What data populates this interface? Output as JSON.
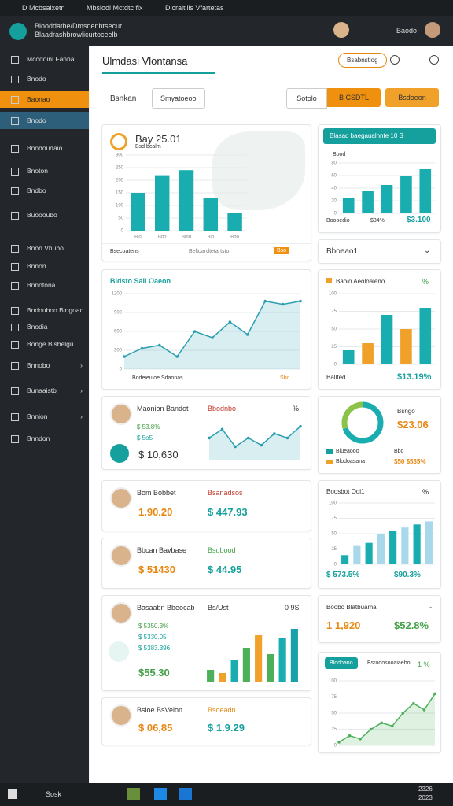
{
  "tabs": [
    "D Mcbsaixetn",
    "Mbsiodi Mctdtc fix",
    "Dlcraltiiis Vfartetas"
  ],
  "address": {
    "line1": "Blooddathe/Dmsdenbtsecur",
    "line2": "Blaadrashbrowlicurtoceelb"
  },
  "toolbar": {
    "button": "Baodo"
  },
  "sidebar": [
    "Mcodoinl Fanna",
    "Bnodo",
    "Baonao",
    "Bnodo",
    "Bnodoudaio",
    "Bnoton",
    "Bndbo",
    "Buoooubo",
    "Bnon Vhubo",
    "Bnnon",
    "Bnnotona",
    "Bndouboo Bingoao",
    "Bnodia",
    "Bonge Blsbelgu",
    "Bnnobo",
    "Bunaaistb",
    "Bnnion",
    "Bnndon"
  ],
  "header": {
    "title": "Ulmdasi Vlontansa",
    "button": "Bsabnstiog"
  },
  "filters": {
    "label": "Bsnkan",
    "select": "Smyatoeoo",
    "tab": "Sotolo",
    "active": "B CSDTL",
    "action": "Bsdoeon"
  },
  "left": [
    {
      "title": "Bay 25.01",
      "subtitle": "Bsd bcalm",
      "chart": {
        "type": "bar",
        "categories": [
          "Blo",
          "Bdo",
          "Blnd",
          "Blo",
          "Bdo"
        ],
        "values": [
          150,
          220,
          240,
          130,
          70
        ],
        "color": "#19adb0",
        "ylim": [
          0,
          300
        ],
        "yticks": [
          0,
          50,
          100,
          150,
          200,
          250,
          300
        ]
      },
      "footer": "Bsecoatens",
      "note": "Beltoardtetartsto",
      "badge": "Bso"
    },
    {
      "title": "Bldsto Sall Oaeon",
      "chart": {
        "type": "area",
        "values": [
          200,
          330,
          380,
          200,
          600,
          500,
          750,
          550,
          1080,
          1030,
          1080
        ],
        "color": "#2a9fb0",
        "ylim": [
          0,
          1200
        ],
        "yticks": [
          0,
          300,
          600,
          900,
          1200
        ]
      },
      "footer": "Bodeieuloe Sdaonas",
      "badge": "Sbo"
    },
    {
      "name": "Maonion Bandot",
      "tag": "Bbodnbo",
      "unit": "%",
      "stats": [
        "$ 53.8%",
        "$ 5o5"
      ],
      "value": "$ 10,630",
      "chart": {
        "type": "area",
        "values": [
          30,
          42,
          18,
          30,
          20,
          36,
          30,
          46
        ],
        "color": "#2a9fb0",
        "ylim": [
          0,
          50
        ]
      }
    },
    {
      "name": "Bom Bobbet",
      "tag": "Bsanadsos",
      "value": "1.90.20",
      "amount": "$ 447.93"
    },
    {
      "name": "Bbcan Bavbase",
      "tag": "Bsdbood",
      "value": "$ 51430",
      "amount": "$ 44.95"
    },
    {
      "name": "Basaabn Bbeocab",
      "tag": "Bs/Ust",
      "unit": "0 9S",
      "stats": [
        "$ 5350.3%",
        "$ 5330.05",
        "$ 5383.396"
      ],
      "value": "$55.30",
      "chart": {
        "type": "bar",
        "values": [
          20,
          15,
          35,
          55,
          75,
          45,
          70,
          85
        ],
        "colors": [
          "#4cb05a",
          "#f0a12a",
          "#19adb0",
          "#4cb05a",
          "#f0a12a",
          "#4cb05a",
          "#19adb0",
          "#19a0a8"
        ],
        "ylim": [
          0,
          100
        ]
      }
    },
    {
      "name": "Bsloe BsVeion",
      "tag": "Bsoeadn",
      "value": "$ 06,85",
      "amount": "$ 1.9.29"
    }
  ],
  "right": [
    {
      "title": "Blasad baegaualnnte 10 S",
      "legend": "Bood",
      "chart": {
        "type": "bar",
        "values": [
          25,
          35,
          45,
          60,
          70
        ],
        "color": "#19adb0",
        "ylim": [
          0,
          80
        ],
        "yticks": [
          0,
          20,
          40,
          60,
          80
        ]
      },
      "footer": "Boooedio",
      "stat": "$34%",
      "value": "$3.100"
    },
    {
      "title": "Bboeao1"
    },
    {
      "title": "Baoio Aeoloaleno",
      "unit": "%",
      "chart": {
        "type": "bar",
        "values": [
          20,
          30,
          70,
          50,
          80
        ],
        "colors": [
          "#19adb0",
          "#f0a12a",
          "#19adb0",
          "#f0a12a",
          "#19adb0"
        ],
        "ylim": [
          0,
          100
        ],
        "yticks": [
          0,
          25,
          50,
          75,
          100
        ]
      },
      "footer": "Ballted",
      "value": "$13.19%"
    },
    {
      "label": "Bsngo",
      "value": "$23.06",
      "legend": [
        "Blueaooo",
        "Blodoasana"
      ],
      "tag": "Bbo",
      "stat": "$50 $535%",
      "chart": {
        "type": "donut",
        "values": [
          70,
          30
        ],
        "colors": [
          "#19adb0",
          "#8bc34a"
        ]
      }
    },
    {
      "title": "Boosbot Ooi1",
      "unit": "%",
      "chart": {
        "type": "bar",
        "values": [
          15,
          30,
          35,
          50,
          55,
          60,
          65,
          70
        ],
        "colors": [
          "#19adb0",
          "#a8d8ea",
          "#19adb0",
          "#a8d8ea",
          "#19adb0",
          "#a8d8ea",
          "#19adb0",
          "#a8d8ea"
        ],
        "ylim": [
          0,
          100
        ],
        "yticks": [
          0,
          25,
          50,
          75,
          100
        ]
      },
      "stat": "$ 573.5%",
      "value": "$90.3%"
    },
    {
      "title": "Boobo Blatbuama",
      "value": "1 1,920",
      "stat": "$52.8%"
    },
    {
      "button": "Blodoano",
      "title": "Bsrodosooaiaebo",
      "unit": "1 %",
      "chart": {
        "type": "area",
        "values": [
          5,
          15,
          10,
          25,
          35,
          30,
          50,
          65,
          55,
          80
        ],
        "color": "#4cb05a",
        "ylim": [
          0,
          100
        ],
        "yticks": [
          0,
          25,
          50,
          75,
          100
        ]
      }
    }
  ],
  "taskbar": {
    "search": "Sosk",
    "time": "2326",
    "date": "2023"
  }
}
